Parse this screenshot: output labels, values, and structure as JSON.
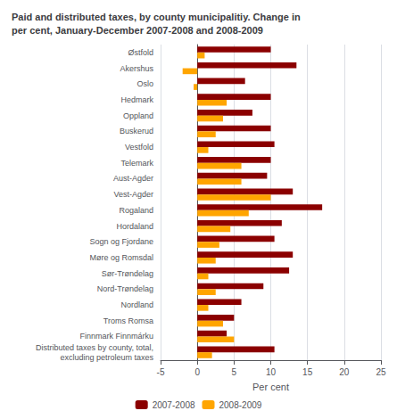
{
  "chart_data": {
    "type": "bar",
    "orientation": "horizontal",
    "title": "Paid and distributed taxes, by county municipalitiy. Change in\nper cent, January-December 2007-2008 and 2008-2009",
    "categories": [
      "Østfold",
      "Akershus",
      "Oslo",
      "Hedmark",
      "Oppland",
      "Buskerud",
      "Vestfold",
      "Telemark",
      "Aust-Agder",
      "Vest-Agder",
      "Rogaland",
      "Hordaland",
      "Sogn og Fjordane",
      "Møre og Romsdal",
      "Sør-Trøndelag",
      "Nord-Trøndelag",
      "Nordland",
      "Troms Romsa",
      "Finnmark Finnmárku",
      "Distributed taxes by county, total,\nexcluding petroleum taxes"
    ],
    "series": [
      {
        "name": "2007-2008",
        "color": "#8B0000",
        "values": [
          10.0,
          13.5,
          6.5,
          10.0,
          7.5,
          10.0,
          10.5,
          10.0,
          9.5,
          13.0,
          17.0,
          11.5,
          10.5,
          13.0,
          12.5,
          9.0,
          6.0,
          5.0,
          4.0,
          10.5
        ]
      },
      {
        "name": "2008-2009",
        "color": "#FFA500",
        "values": [
          1.0,
          -2.0,
          -0.5,
          4.0,
          3.5,
          2.5,
          1.5,
          6.0,
          6.0,
          10.0,
          7.0,
          4.5,
          3.0,
          2.5,
          1.5,
          2.5,
          1.5,
          3.5,
          5.0,
          2.0
        ]
      }
    ],
    "xlabel": "Per cent",
    "xlim": [
      -5,
      25
    ],
    "xticks": [
      -5,
      0,
      5,
      10,
      15,
      20,
      25
    ],
    "grid": true,
    "legend": "bottom"
  }
}
